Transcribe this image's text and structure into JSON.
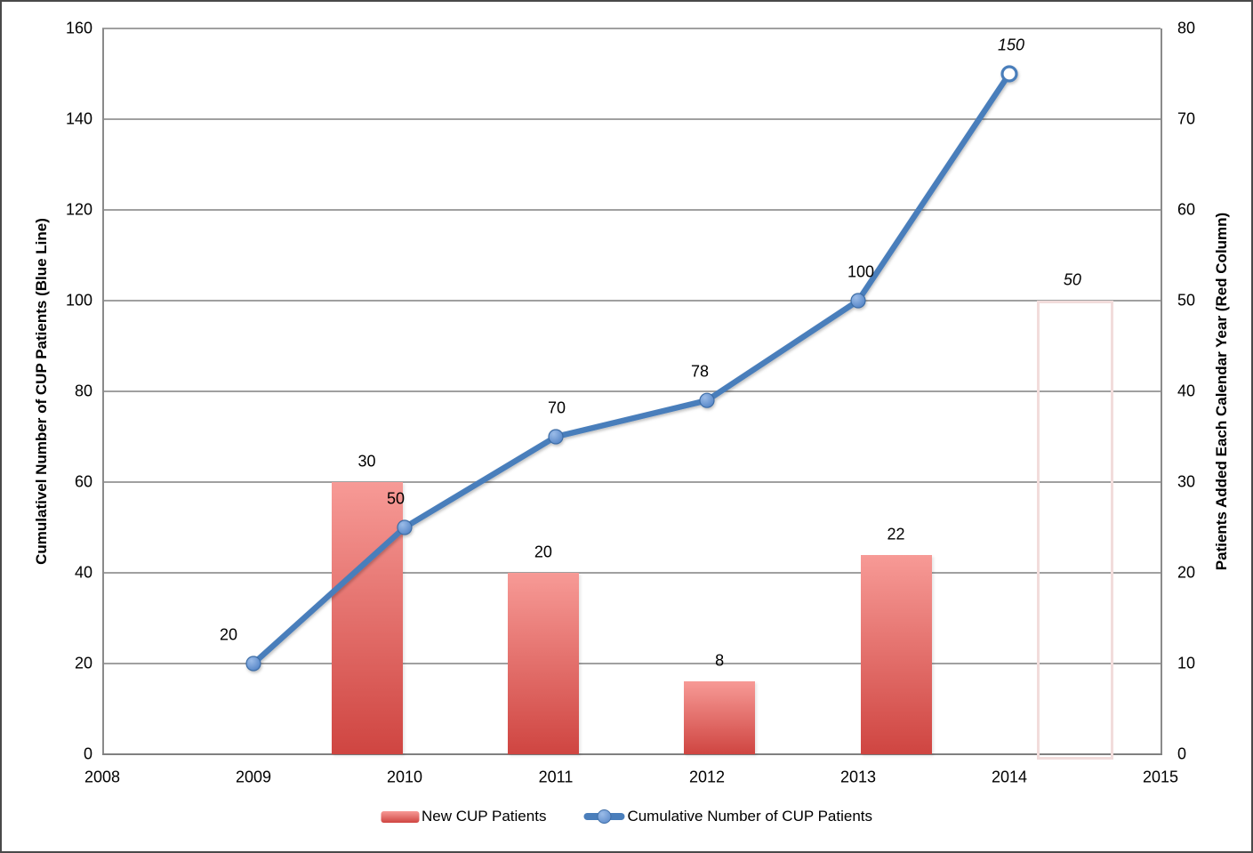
{
  "chart_data": {
    "type": "combo",
    "title": "",
    "x_ticks": [
      "2008",
      "2009",
      "2010",
      "2011",
      "2012",
      "2013",
      "2014",
      "2015"
    ],
    "left_axis": {
      "title": "Cumulativel Number of CUP Patients (Blue Line)",
      "min": 0,
      "max": 160,
      "step": 20,
      "tick_labels": [
        "0",
        "20",
        "40",
        "60",
        "80",
        "100",
        "120",
        "140",
        "160"
      ]
    },
    "right_axis": {
      "title": "Patients Added Each Calendar Year (Red Column)",
      "min": 0,
      "max": 80,
      "step": 10,
      "tick_labels": [
        "0",
        "10",
        "20",
        "30",
        "40",
        "50",
        "60",
        "70",
        "80"
      ]
    },
    "series": [
      {
        "name": "New CUP Patients",
        "type": "column",
        "axis": "right",
        "x": [
          "2010",
          "2011",
          "2012",
          "2013",
          "2014"
        ],
        "values": [
          30,
          20,
          8,
          22,
          50
        ],
        "data_labels": [
          "30",
          "20",
          "8",
          "22",
          "50"
        ],
        "last_point_projected": true
      },
      {
        "name": "Cumulative Number of CUP Patients",
        "type": "line",
        "axis": "left",
        "x": [
          "2009",
          "2010",
          "2011",
          "2012",
          "2013",
          "2014"
        ],
        "values": [
          20,
          50,
          70,
          78,
          100,
          150
        ],
        "data_labels": [
          "20",
          "50",
          "70",
          "78",
          "100",
          "150"
        ],
        "last_point_projected": true
      }
    ],
    "legend": {
      "position": "bottom",
      "items": [
        "New CUP Patients",
        "Cumulative Number of CUP Patients"
      ]
    },
    "grid": true,
    "colors": {
      "bar_top": "#f79a96",
      "bar_bottom": "#cf4541",
      "projected_bar_border": "#f2dcdb",
      "line": "#4a7ebb",
      "marker_fill_light": "#9bbce8",
      "marker_fill_dark": "#5585c7",
      "marker_edge": "#3e6da6",
      "gridline": "#a0a0a0",
      "axis_line": "#808080"
    }
  }
}
